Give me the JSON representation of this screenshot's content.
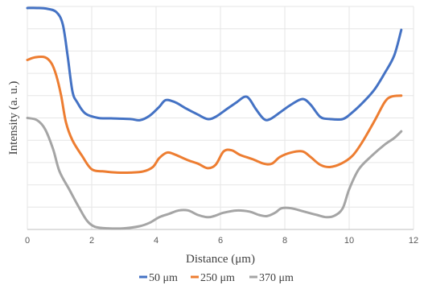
{
  "chart_data": {
    "type": "line",
    "title": "",
    "xlabel": "Distance (μm)",
    "ylabel": "Intensity (a. u.)",
    "xlim": [
      0,
      12
    ],
    "ylim": [
      0,
      10
    ],
    "x_ticks": [
      0,
      2,
      4,
      6,
      8,
      10,
      12
    ],
    "x_tick_labels": [
      "0",
      "2",
      "4",
      "6",
      "8",
      "10",
      "12"
    ],
    "grid": true,
    "legend_position": "bottom",
    "y_tick_labels_shown": false,
    "series": [
      {
        "name": "50 μm",
        "color": "#4472C4",
        "points": [
          [
            0.0,
            9.93
          ],
          [
            0.3,
            9.93
          ],
          [
            0.6,
            9.9
          ],
          [
            0.9,
            9.75
          ],
          [
            1.1,
            9.2
          ],
          [
            1.25,
            7.8
          ],
          [
            1.4,
            6.2
          ],
          [
            1.55,
            5.7
          ],
          [
            1.8,
            5.2
          ],
          [
            2.2,
            5.0
          ],
          [
            2.6,
            4.98
          ],
          [
            3.2,
            4.95
          ],
          [
            3.5,
            4.9
          ],
          [
            3.8,
            5.1
          ],
          [
            4.1,
            5.5
          ],
          [
            4.3,
            5.8
          ],
          [
            4.6,
            5.7
          ],
          [
            4.9,
            5.45
          ],
          [
            5.3,
            5.15
          ],
          [
            5.6,
            4.95
          ],
          [
            5.85,
            5.05
          ],
          [
            6.2,
            5.4
          ],
          [
            6.5,
            5.7
          ],
          [
            6.75,
            5.95
          ],
          [
            6.9,
            5.85
          ],
          [
            7.1,
            5.4
          ],
          [
            7.35,
            4.95
          ],
          [
            7.55,
            4.95
          ],
          [
            7.9,
            5.3
          ],
          [
            8.2,
            5.6
          ],
          [
            8.55,
            5.85
          ],
          [
            8.8,
            5.6
          ],
          [
            9.1,
            5.05
          ],
          [
            9.4,
            4.95
          ],
          [
            9.8,
            4.95
          ],
          [
            10.1,
            5.25
          ],
          [
            10.5,
            5.8
          ],
          [
            10.8,
            6.3
          ],
          [
            11.1,
            7.0
          ],
          [
            11.4,
            7.8
          ],
          [
            11.62,
            8.95
          ]
        ]
      },
      {
        "name": "250 μm",
        "color": "#ED7D31",
        "points": [
          [
            0.0,
            7.6
          ],
          [
            0.25,
            7.72
          ],
          [
            0.55,
            7.72
          ],
          [
            0.75,
            7.45
          ],
          [
            0.9,
            6.9
          ],
          [
            1.05,
            6.0
          ],
          [
            1.2,
            4.8
          ],
          [
            1.4,
            4.0
          ],
          [
            1.7,
            3.3
          ],
          [
            2.0,
            2.7
          ],
          [
            2.4,
            2.6
          ],
          [
            2.8,
            2.55
          ],
          [
            3.2,
            2.55
          ],
          [
            3.6,
            2.6
          ],
          [
            3.9,
            2.8
          ],
          [
            4.1,
            3.2
          ],
          [
            4.35,
            3.45
          ],
          [
            4.6,
            3.35
          ],
          [
            5.0,
            3.1
          ],
          [
            5.3,
            2.95
          ],
          [
            5.6,
            2.75
          ],
          [
            5.85,
            2.9
          ],
          [
            6.1,
            3.5
          ],
          [
            6.35,
            3.55
          ],
          [
            6.6,
            3.35
          ],
          [
            7.0,
            3.15
          ],
          [
            7.35,
            2.95
          ],
          [
            7.6,
            2.95
          ],
          [
            7.85,
            3.25
          ],
          [
            8.2,
            3.45
          ],
          [
            8.55,
            3.5
          ],
          [
            8.8,
            3.25
          ],
          [
            9.1,
            2.9
          ],
          [
            9.4,
            2.8
          ],
          [
            9.75,
            2.95
          ],
          [
            10.1,
            3.3
          ],
          [
            10.4,
            3.9
          ],
          [
            10.8,
            4.9
          ],
          [
            11.1,
            5.7
          ],
          [
            11.3,
            5.95
          ],
          [
            11.62,
            6.0
          ]
        ]
      },
      {
        "name": "370 μm",
        "color": "#A5A5A5",
        "points": [
          [
            0.0,
            5.0
          ],
          [
            0.3,
            4.9
          ],
          [
            0.55,
            4.5
          ],
          [
            0.8,
            3.6
          ],
          [
            1.0,
            2.6
          ],
          [
            1.3,
            1.8
          ],
          [
            1.6,
            1.0
          ],
          [
            1.85,
            0.4
          ],
          [
            2.1,
            0.12
          ],
          [
            2.5,
            0.05
          ],
          [
            3.0,
            0.05
          ],
          [
            3.5,
            0.15
          ],
          [
            3.8,
            0.3
          ],
          [
            4.1,
            0.55
          ],
          [
            4.4,
            0.7
          ],
          [
            4.7,
            0.85
          ],
          [
            5.0,
            0.85
          ],
          [
            5.3,
            0.65
          ],
          [
            5.6,
            0.55
          ],
          [
            5.8,
            0.6
          ],
          [
            6.1,
            0.75
          ],
          [
            6.5,
            0.85
          ],
          [
            6.9,
            0.8
          ],
          [
            7.2,
            0.65
          ],
          [
            7.45,
            0.6
          ],
          [
            7.7,
            0.75
          ],
          [
            7.9,
            0.95
          ],
          [
            8.2,
            0.95
          ],
          [
            8.6,
            0.8
          ],
          [
            9.0,
            0.65
          ],
          [
            9.3,
            0.55
          ],
          [
            9.55,
            0.62
          ],
          [
            9.8,
            0.95
          ],
          [
            10.0,
            1.8
          ],
          [
            10.3,
            2.7
          ],
          [
            10.7,
            3.3
          ],
          [
            11.1,
            3.8
          ],
          [
            11.4,
            4.1
          ],
          [
            11.62,
            4.4
          ]
        ]
      }
    ]
  }
}
